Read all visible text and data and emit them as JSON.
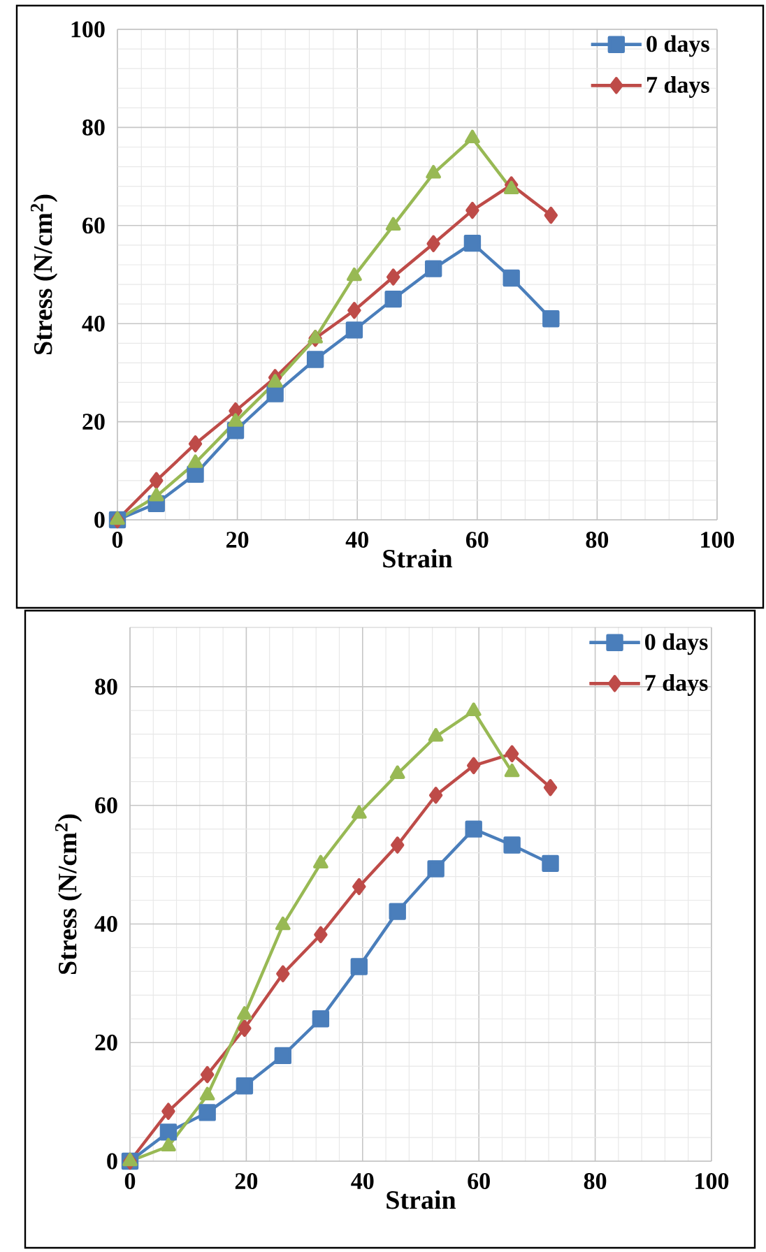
{
  "chart_data": [
    {
      "type": "line",
      "xlabel": "Strain",
      "ylabel": "Stress (N/cm$^{2}$)",
      "xlim": [
        0,
        100
      ],
      "ylim": [
        0,
        100
      ],
      "xticks": [
        0,
        20,
        40,
        60,
        80,
        100
      ],
      "yticks": [
        0,
        20,
        40,
        60,
        80,
        100
      ],
      "grid": true,
      "legend": "top right",
      "line_style": "solid",
      "x": [
        0,
        6.5,
        13,
        19.7,
        26.3,
        33,
        39.5,
        46,
        52.7,
        59.2,
        65.7,
        72.3
      ],
      "series": [
        {
          "name": "0 days",
          "color": "#4a7ebb",
          "marker": "square",
          "values": [
            0,
            3.3,
            9.3,
            18.2,
            25.7,
            32.7,
            38.7,
            45,
            51.2,
            56.4,
            49.3,
            41
          ]
        },
        {
          "name": "7 days",
          "color": "#be4b48",
          "marker": "diamond",
          "values": [
            0,
            8,
            15.5,
            22.2,
            29,
            37,
            42.7,
            49.5,
            56.3,
            63.1,
            68.3,
            62.1
          ]
        },
        {
          "color": "#98b954",
          "marker": "triangle",
          "values": [
            0,
            4.8,
            11.6,
            20,
            28,
            37,
            49.7,
            60,
            70.6,
            77.8,
            67.4,
            null
          ]
        }
      ]
    },
    {
      "type": "line",
      "xlabel": "Strain",
      "ylabel": "Stress (N/cm$^{2}$)",
      "xlim": [
        0,
        100
      ],
      "ylim": [
        0,
        90
      ],
      "xticks": [
        0,
        20,
        40,
        60,
        80,
        100
      ],
      "yticks": [
        0,
        20,
        40,
        60,
        80
      ],
      "grid": true,
      "legend": "top right",
      "line_style": "solid",
      "x": [
        0,
        6.6,
        13.3,
        19.7,
        26.3,
        32.8,
        39.4,
        46,
        52.6,
        59.1,
        65.7,
        72.3
      ],
      "series": [
        {
          "name": "0 days",
          "color": "#4a7ebb",
          "marker": "square",
          "values": [
            0,
            4.9,
            8.2,
            12.7,
            17.8,
            24,
            32.8,
            42.1,
            49.3,
            56,
            53.3,
            50.2
          ]
        },
        {
          "name": "7 days",
          "color": "#be4b48",
          "marker": "diamond",
          "values": [
            0,
            8.4,
            14.6,
            22.4,
            31.6,
            38.2,
            46.3,
            53.3,
            61.7,
            66.7,
            68.7,
            63
          ]
        },
        {
          "color": "#98b954",
          "marker": "triangle",
          "values": [
            0,
            2.5,
            11.1,
            24.7,
            39.8,
            50.2,
            58.6,
            65.3,
            71.6,
            75.9,
            65.6,
            null
          ]
        }
      ]
    }
  ]
}
